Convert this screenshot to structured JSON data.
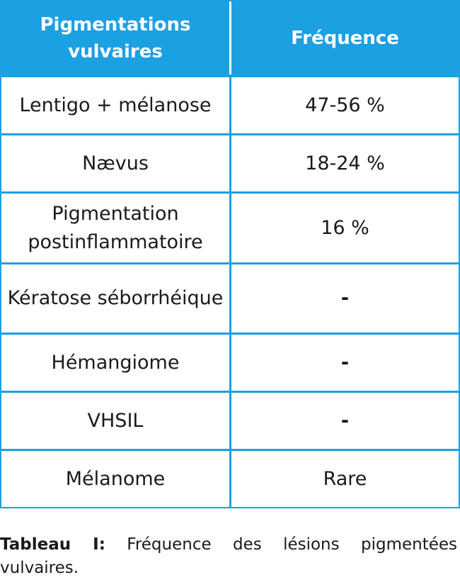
{
  "table": {
    "headers": [
      "Pigmentations vulvaires",
      "Fréquence"
    ],
    "rows": [
      {
        "lesion": "Lentigo + mélanose",
        "frequence": "47-56 %"
      },
      {
        "lesion": "Nævus",
        "frequence": "18-24 %"
      },
      {
        "lesion": "Pigmentation postinflammatoire",
        "frequence": "16 %"
      },
      {
        "lesion": "Kératose séborrhéique",
        "frequence": "-"
      },
      {
        "lesion": "Hémangiome",
        "frequence": "-"
      },
      {
        "lesion": "VHSIL",
        "frequence": "-"
      },
      {
        "lesion": "Mélanome",
        "frequence": "Rare"
      }
    ]
  },
  "caption": {
    "label": "Tableau I:",
    "text": " Fréquence des lésions pigmentées vulvaires."
  },
  "colors": {
    "header_bg": "#1ba0e2",
    "header_text": "#ffffff",
    "border": "#1ba0e2"
  }
}
